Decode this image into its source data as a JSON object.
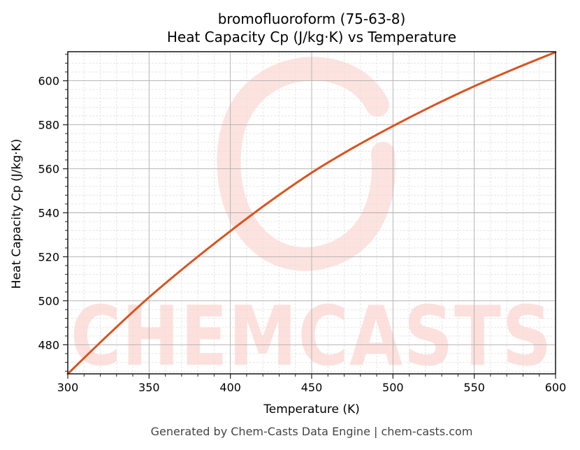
{
  "chart_data": {
    "type": "line",
    "title": "bromofluoroform (75-63-8)",
    "subtitle": "Heat Capacity Cp (J/kg·K) vs Temperature",
    "xlabel": "Temperature (K)",
    "ylabel": "Heat Capacity Cp (J/kg·K)",
    "xlim": [
      300,
      600
    ],
    "ylim": [
      466.8,
      613.2
    ],
    "x_ticks": [
      300,
      350,
      400,
      450,
      500,
      550,
      600
    ],
    "y_ticks": [
      480,
      500,
      520,
      540,
      560,
      580,
      600
    ],
    "grid": true,
    "legend": null,
    "series": [
      {
        "name": "Cp",
        "color": "#d9531e",
        "x": [
          300,
          325,
          350,
          375,
          400,
          425,
          450,
          475,
          500,
          525,
          550,
          575,
          600
        ],
        "values": [
          466.8,
          484.6,
          501.6,
          517.1,
          531.7,
          545.5,
          558.2,
          569.3,
          579.4,
          588.8,
          597.5,
          605.5,
          613.0
        ]
      }
    ]
  },
  "header": {
    "title_line1": "bromofluoroform (75-63-8)",
    "title_line2": "Heat Capacity Cp (J/kg·K) vs Temperature"
  },
  "axes": {
    "xlabel": "Temperature (K)",
    "ylabel": "Heat Capacity Cp (J/kg·K)",
    "x_tick_labels": [
      "300",
      "350",
      "400",
      "450",
      "500",
      "550",
      "600"
    ],
    "y_tick_labels": [
      "480",
      "500",
      "520",
      "540",
      "560",
      "580",
      "600"
    ]
  },
  "watermark": {
    "text": "CHEMCASTS",
    "color": "#fde0dc"
  },
  "footer": {
    "text": "Generated by Chem-Casts Data Engine | chem-casts.com"
  },
  "colors": {
    "line": "#d9531e",
    "grid_major": "#b0b0b0",
    "grid_minor": "#e0e0e0",
    "axis": "#222222"
  }
}
